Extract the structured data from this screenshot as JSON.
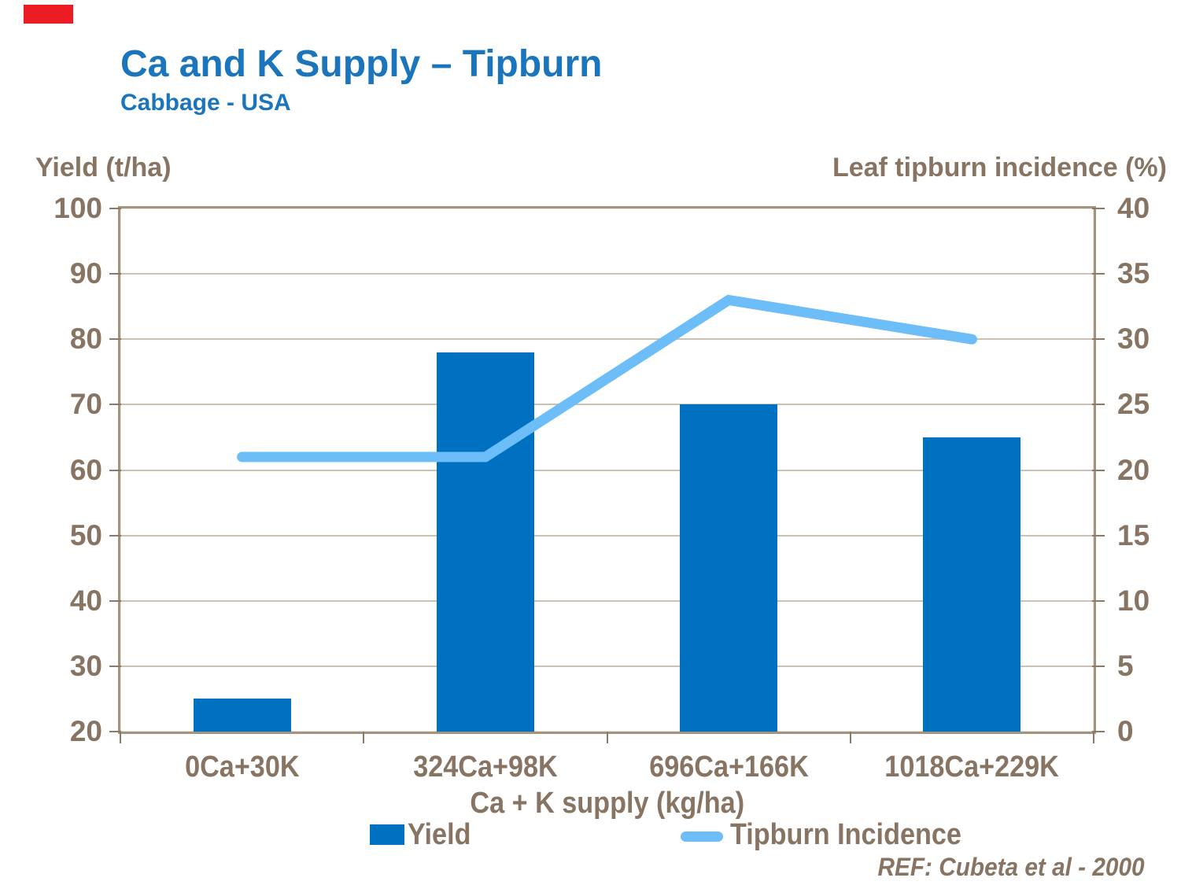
{
  "page": {
    "background": "#FFFFFF"
  },
  "header": {
    "title": "Ca and K Supply – Tipburn",
    "subtitle": "Cabbage - USA"
  },
  "footer": {
    "ref": "REF: Cubeta et al - 2000"
  },
  "legend": {
    "position": "bottom",
    "items": [
      {
        "label": "Yield",
        "swatch": "square",
        "color": "#0070C0"
      },
      {
        "label": "Tipburn Incidence",
        "swatch": "line",
        "color": "#6CBDF8"
      }
    ]
  },
  "colors": {
    "bar": "#0070C0",
    "line": "#6CBDF8",
    "title_blue": "#1B75BC",
    "text_brown": "#877463",
    "axis_border": "#A3947F",
    "gridline": "#CBC2B5",
    "tick": "#8A7B69",
    "red_block": "#EC1C24",
    "background": "#FFFFFF"
  },
  "chart_data": {
    "type": "combo",
    "title": "Ca and K Supply – Tipburn",
    "subtitle": "Cabbage - USA",
    "categories": [
      "0Ca+30K",
      "324Ca+98K",
      "696Ca+166K",
      "1018Ca+229K"
    ],
    "series": [
      {
        "name": "Yield",
        "type": "bar",
        "axis": "left",
        "color": "#0070C0",
        "values": [
          25,
          78,
          70,
          65
        ]
      },
      {
        "name": "Tipburn Incidence",
        "type": "line",
        "axis": "right",
        "color": "#6CBDF8",
        "values": [
          21,
          21,
          33,
          30
        ]
      }
    ],
    "xlabel": "Ca + K supply (kg/ha)",
    "ylabel_left": "Yield (t/ha)",
    "ylabel_right": "Leaf tipburn incidence (%)",
    "ylim_left": [
      20,
      100
    ],
    "ylim_right": [
      0,
      40
    ],
    "yticks_left": [
      100,
      90,
      80,
      70,
      60,
      50,
      40,
      30,
      20
    ],
    "yticks_right": [
      40,
      35,
      30,
      25,
      20,
      15,
      10,
      5,
      0
    ],
    "grid": true,
    "legend_position": "bottom"
  }
}
